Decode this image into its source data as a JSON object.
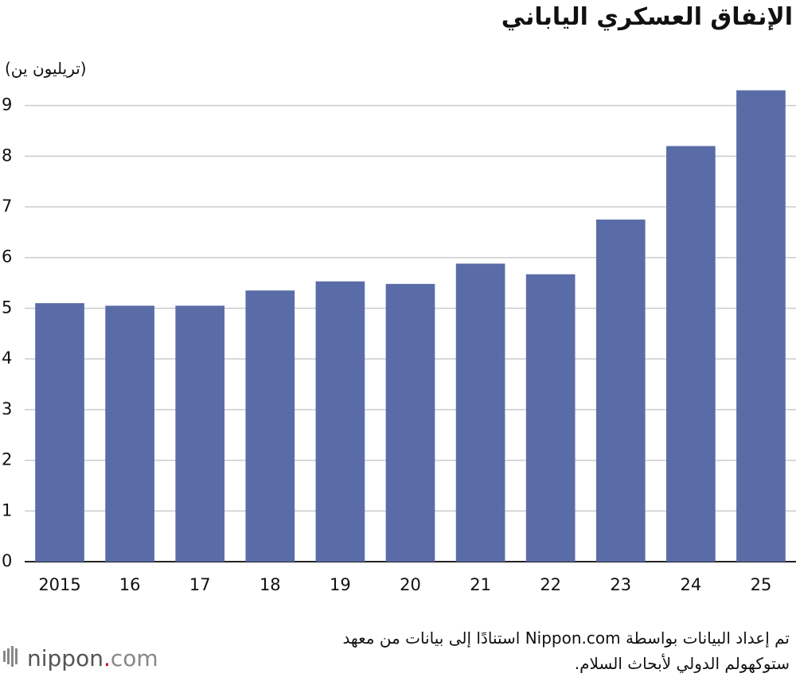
{
  "chart_data": {
    "type": "bar",
    "title": "الإنفاق العسكري الياباني",
    "y_axis_label": "(تريليون ين)",
    "categories": [
      "2015",
      "16",
      "17",
      "18",
      "19",
      "20",
      "21",
      "22",
      "23",
      "24",
      "25"
    ],
    "values": [
      5.1,
      5.05,
      5.05,
      5.35,
      5.53,
      5.48,
      5.88,
      5.67,
      6.75,
      8.2,
      9.3
    ],
    "color": "#5a6ca8",
    "ylim": [
      0,
      9.3
    ],
    "yticks": [
      0,
      1,
      2,
      3,
      4,
      5,
      6,
      7,
      8,
      9
    ],
    "grid": true
  },
  "footer": {
    "note": [
      "تم إعداد البيانات بواسطة Nippon.com استنادًا إلى بيانات من معهد",
      "ستوكهولم الدولي لأبحاث السلام."
    ],
    "logo": [
      "nippon",
      ".",
      "com"
    ]
  }
}
